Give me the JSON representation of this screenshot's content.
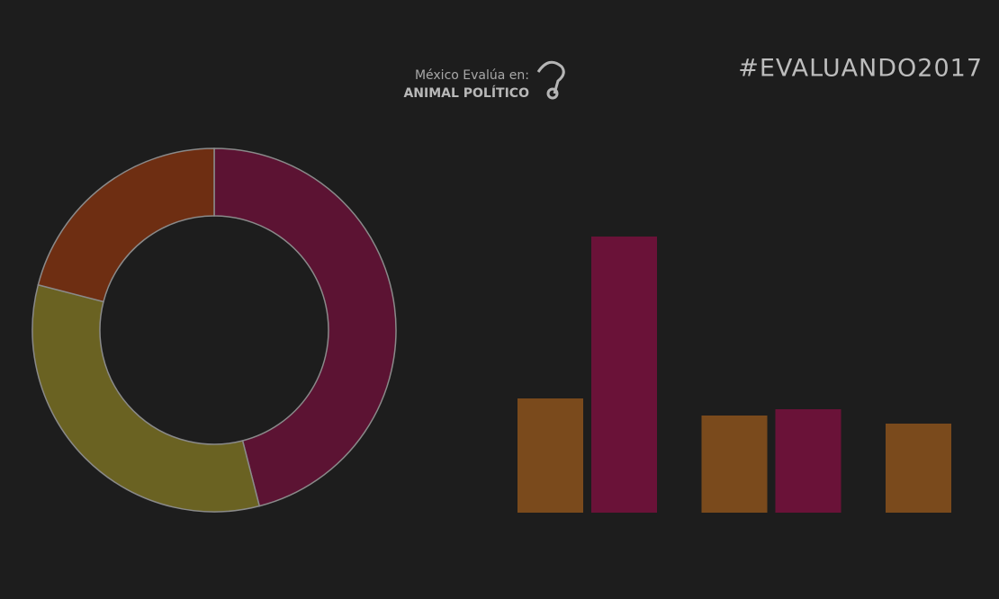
{
  "header": {
    "subtitle": "México Evalúa en:",
    "brand": "ANIMAL POLÍTICO",
    "hashtag": "#EVALUANDO2017"
  },
  "chart_data": [
    {
      "type": "pie",
      "categories": [
        null,
        null,
        null
      ],
      "values": [
        46,
        33,
        21
      ],
      "colors": [
        "#5c1333",
        "#6a6222",
        "#6e2e12"
      ]
    },
    {
      "type": "bar",
      "categories": [
        null,
        null,
        null
      ],
      "series": [
        {
          "color": "#7a4a1c",
          "values": [
            127,
            108,
            99
          ]
        },
        {
          "color": "#6a1238",
          "values": [
            307,
            115,
            null
          ]
        }
      ],
      "ylim": [
        0,
        320
      ]
    }
  ]
}
